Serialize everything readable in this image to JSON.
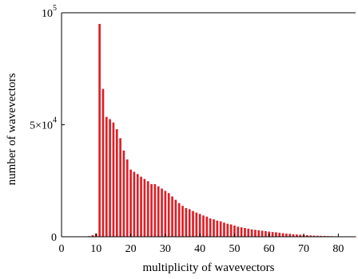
{
  "chart_data": {
    "type": "bar",
    "xlabel": "multiplicity of wavevectors",
    "ylabel": "number of wavevectors",
    "xlim": [
      0,
      85
    ],
    "ylim": [
      0,
      100000
    ],
    "x_ticks": [
      {
        "value": 0,
        "label": "0"
      },
      {
        "value": 10,
        "label": "10"
      },
      {
        "value": 20,
        "label": "20"
      },
      {
        "value": 30,
        "label": "30"
      },
      {
        "value": 40,
        "label": "40"
      },
      {
        "value": 50,
        "label": "50"
      },
      {
        "value": 60,
        "label": "60"
      },
      {
        "value": 70,
        "label": "70"
      },
      {
        "value": 80,
        "label": "80"
      }
    ],
    "y_ticks": [
      {
        "value": 0,
        "mantissa": "0",
        "exponent": ""
      },
      {
        "value": 50000,
        "mantissa": "5×10",
        "exponent": "4"
      },
      {
        "value": 100000,
        "mantissa": "10",
        "exponent": "5"
      }
    ],
    "bar_color": "#dd1f26",
    "x": [
      1,
      2,
      3,
      4,
      5,
      6,
      7,
      8,
      9,
      10,
      11,
      12,
      13,
      14,
      15,
      16,
      17,
      18,
      19,
      20,
      21,
      22,
      23,
      24,
      25,
      26,
      27,
      28,
      29,
      30,
      31,
      32,
      33,
      34,
      35,
      36,
      37,
      38,
      39,
      40,
      41,
      42,
      43,
      44,
      45,
      46,
      47,
      48,
      49,
      50,
      51,
      52,
      53,
      54,
      55,
      56,
      57,
      58,
      59,
      60,
      61,
      62,
      63,
      64,
      65,
      66,
      67,
      68,
      69,
      70,
      71,
      72,
      73,
      74,
      75,
      76,
      77,
      78,
      79,
      80,
      81,
      82,
      83,
      84,
      85
    ],
    "values": [
      0,
      0,
      0,
      0,
      0,
      0,
      100,
      300,
      700,
      1500,
      95000,
      66000,
      53500,
      52500,
      51000,
      48000,
      44000,
      38500,
      34500,
      30000,
      29000,
      28000,
      26800,
      25800,
      24800,
      23500,
      23500,
      22500,
      21500,
      20500,
      19500,
      18000,
      16500,
      15000,
      13800,
      12800,
      12300,
      11500,
      10800,
      10200,
      9500,
      9000,
      8200,
      7800,
      7200,
      6900,
      6300,
      5800,
      5500,
      5000,
      4500,
      4200,
      3900,
      3600,
      3300,
      3100,
      2900,
      2700,
      2500,
      2300,
      2100,
      2000,
      1800,
      1600,
      1400,
      1300,
      1100,
      1000,
      900,
      800,
      700,
      600,
      500,
      450,
      400,
      350,
      300,
      250,
      200,
      150,
      120,
      100,
      80,
      60,
      40
    ]
  }
}
